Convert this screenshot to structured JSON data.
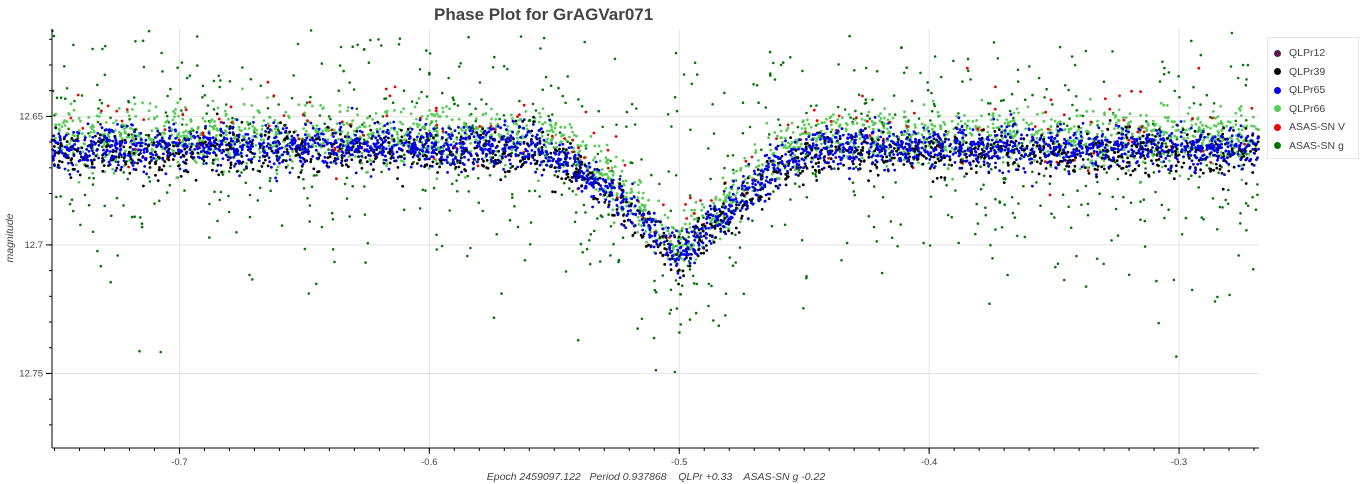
{
  "chart_data": {
    "type": "scatter",
    "title": "Phase Plot for GrAGVar071",
    "xlabel": "Epoch 2459097.122   Period 0.937868    QLPr +0.33    ASAS-SN g -0.22",
    "ylabel": "magnitude",
    "xlim": [
      -0.751,
      -0.268
    ],
    "ylim": [
      12.779,
      12.616
    ],
    "y_inverted": true,
    "x_ticks": [
      -0.7,
      -0.6,
      -0.5,
      -0.4,
      -0.3
    ],
    "x_tick_labels": [
      "-0.7",
      "-0.6",
      "-0.5",
      "-0.4",
      "-0.3"
    ],
    "y_ticks": [
      12.65,
      12.7,
      12.75
    ],
    "y_tick_labels": [
      "12.65",
      "12.7",
      "12.75"
    ],
    "grid": true,
    "legend_position": "top-right (outside plot)",
    "model": {
      "description": "eclipse light curve",
      "baseline_mag": 12.662,
      "eclipse_center_phase": -0.5,
      "eclipse_depth_mag": 0.042,
      "eclipse_half_width_phase": 0.055
    },
    "series": [
      {
        "name": "QLPr12",
        "color": "#5a1a4d",
        "count": 0,
        "scatter_mag": 0.004,
        "offset": 0.0
      },
      {
        "name": "QLPr39",
        "color": "#000000",
        "count": 1500,
        "scatter_mag": 0.0045,
        "offset": 0.002
      },
      {
        "name": "QLPr65",
        "color": "#0000ee",
        "count": 2400,
        "scatter_mag": 0.004,
        "offset": 0.0
      },
      {
        "name": "QLPr66",
        "color": "#55cc55",
        "count": 2200,
        "scatter_mag": 0.0055,
        "offset": -0.004
      },
      {
        "name": "ASAS-SN V",
        "color": "#ee0000",
        "count": 170,
        "scatter_mag": 0.008,
        "offset": -0.006
      },
      {
        "name": "ASAS-SN g",
        "color": "#007700",
        "count": 1000,
        "scatter_mag": 0.024,
        "offset": 0.0
      }
    ]
  }
}
